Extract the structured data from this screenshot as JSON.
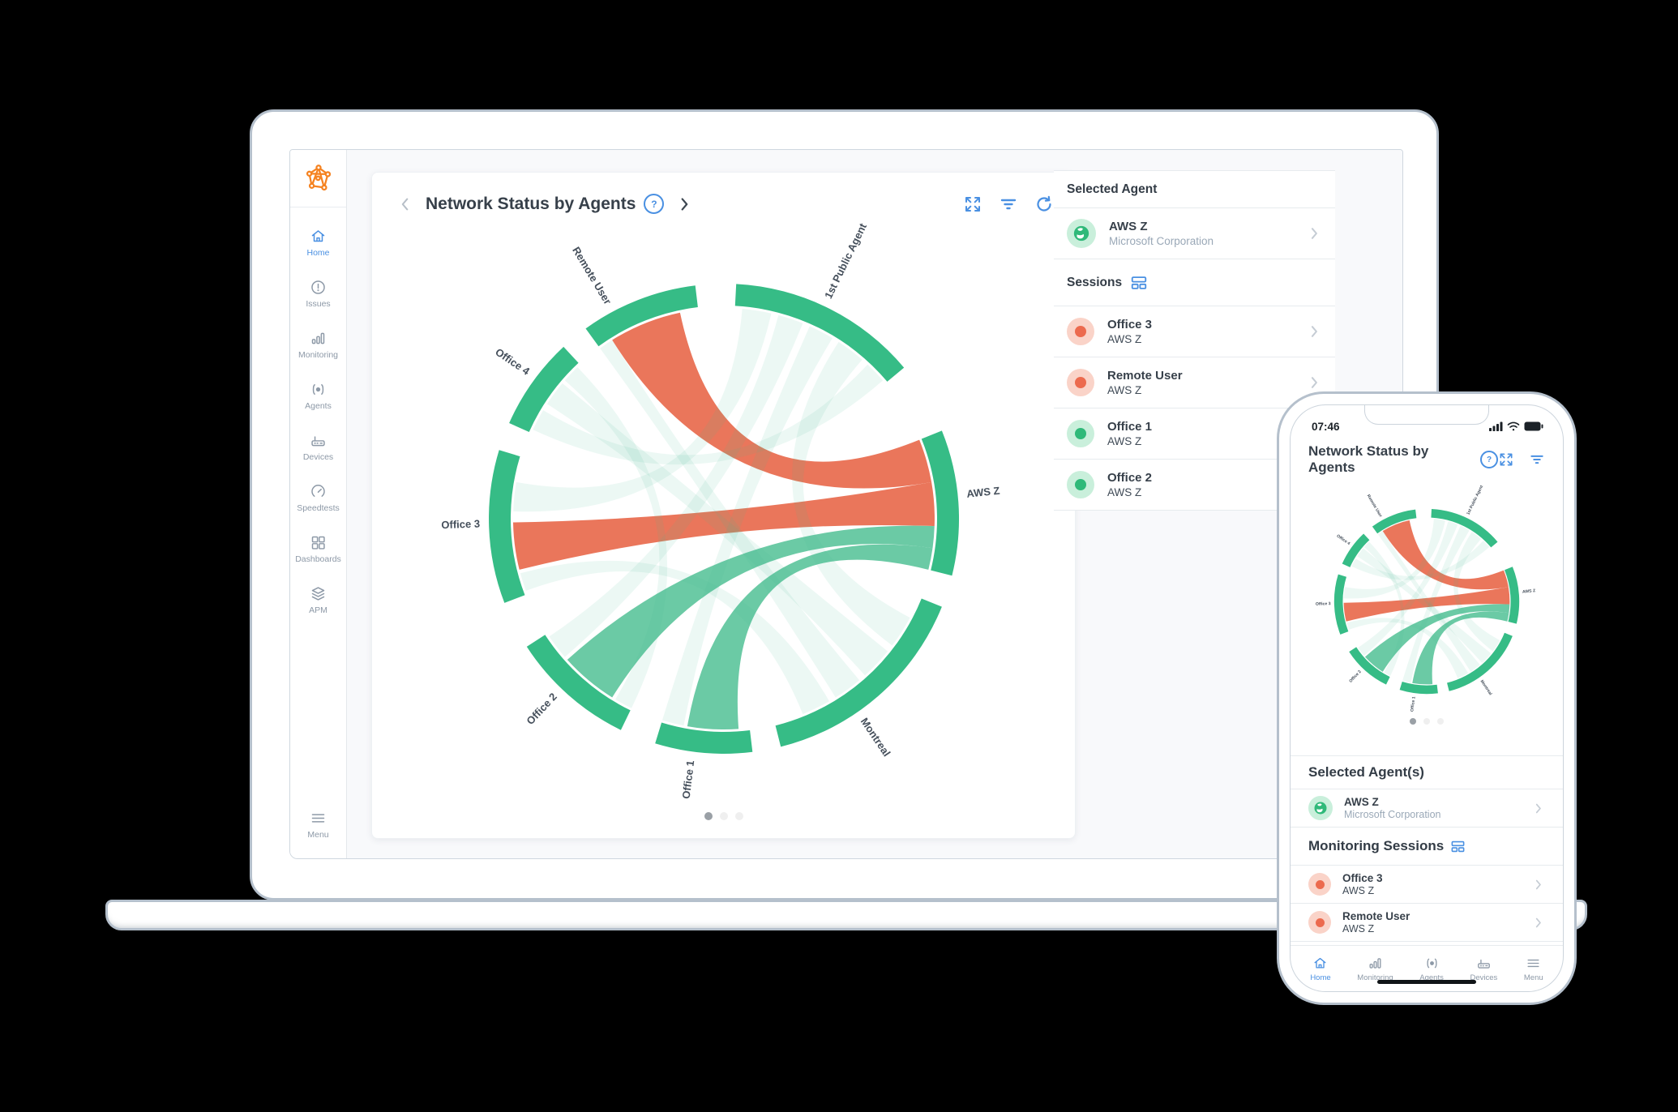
{
  "laptop": {
    "sidebar": {
      "logo": "obkio-logo",
      "items": [
        {
          "label": "Home",
          "active": true
        },
        {
          "label": "Issues",
          "active": false
        },
        {
          "label": "Monitoring",
          "active": false
        },
        {
          "label": "Agents",
          "active": false
        },
        {
          "label": "Devices",
          "active": false
        },
        {
          "label": "Speedtests",
          "active": false
        },
        {
          "label": "Dashboards",
          "active": false
        },
        {
          "label": "APM",
          "active": false
        }
      ],
      "menu_label": "Menu"
    },
    "card": {
      "title": "Network Status by Agents",
      "help": "?"
    },
    "panel": {
      "selected_agent_title": "Selected Agent",
      "agent": {
        "name": "AWS Z",
        "company": "Microsoft Corporation"
      },
      "sessions_title": "Sessions",
      "sessions": [
        {
          "name": "Office 3",
          "target": "AWS Z",
          "status": "alert"
        },
        {
          "name": "Remote User",
          "target": "AWS Z",
          "status": "alert"
        },
        {
          "name": "Office 1",
          "target": "AWS Z",
          "status": "ok"
        },
        {
          "name": "Office 2",
          "target": "AWS Z",
          "status": "ok"
        }
      ]
    }
  },
  "phone": {
    "status_time": "07:46",
    "title": "Network Status by Agents",
    "help": "?",
    "selected_title": "Selected Agent(s)",
    "agent": {
      "name": "AWS Z",
      "company": "Microsoft Corporation"
    },
    "sessions_title": "Monitoring Sessions",
    "sessions": [
      {
        "name": "Office 3",
        "target": "AWS Z",
        "status": "alert"
      },
      {
        "name": "Remote User",
        "target": "AWS Z",
        "status": "alert"
      }
    ],
    "nav": [
      {
        "label": "Home",
        "active": true
      },
      {
        "label": "Monitoring",
        "active": false
      },
      {
        "label": "Agents",
        "active": false
      },
      {
        "label": "Devices",
        "active": false
      },
      {
        "label": "Menu",
        "active": false
      }
    ]
  },
  "chart_data": {
    "type": "chord",
    "title": "Network Status by Agents",
    "nodes": [
      {
        "name": "1st Public Agent",
        "start": 3,
        "end": 50,
        "labelAngle": 26,
        "rotate": -64,
        "anchor": "start"
      },
      {
        "name": "AWS Z",
        "start": 68,
        "end": 104,
        "labelAngle": 85,
        "rotate": -6,
        "anchor": "start"
      },
      {
        "name": "Montreal",
        "start": 112,
        "end": 166,
        "labelAngle": 146,
        "rotate": 56,
        "anchor": "start"
      },
      {
        "name": "Office 1",
        "start": 173,
        "end": 197,
        "labelAngle": 187,
        "rotate": -83,
        "anchor": "end"
      },
      {
        "name": "Office 2",
        "start": 206,
        "end": 237,
        "labelAngle": 223,
        "rotate": -47,
        "anchor": "end"
      },
      {
        "name": "Office 3",
        "start": 249,
        "end": 287,
        "labelAngle": 268,
        "rotate": -2,
        "anchor": "end"
      },
      {
        "name": "Office 4",
        "start": 294,
        "end": 317,
        "labelAngle": 306,
        "rotate": 34,
        "anchor": "end"
      },
      {
        "name": "Remote User",
        "start": 324,
        "end": 353,
        "labelAngle": 331,
        "rotate": 59,
        "anchor": "end"
      }
    ],
    "ribbons": [
      {
        "source": "Remote User",
        "target": "AWS Z",
        "s": [
          328,
          348
        ],
        "t": [
          68,
          80
        ],
        "status": "alert"
      },
      {
        "source": "Office 3",
        "target": "AWS Z",
        "s": [
          256,
          269
        ],
        "t": [
          80,
          92
        ],
        "status": "alert"
      },
      {
        "source": "Office 2",
        "target": "AWS Z",
        "s": [
          212,
          228
        ],
        "t": [
          92,
          98
        ],
        "status": "ok"
      },
      {
        "source": "Office 1",
        "target": "AWS Z",
        "s": [
          176,
          190
        ],
        "t": [
          98,
          104
        ],
        "status": "ok"
      },
      {
        "source": "1st Public Agent",
        "target": "Office 3",
        "s": [
          5,
          13
        ],
        "t": [
          272,
          280
        ],
        "status": "idle"
      },
      {
        "source": "1st Public Agent",
        "target": "Office 2",
        "s": [
          15,
          22
        ],
        "t": [
          229,
          236
        ],
        "status": "idle"
      },
      {
        "source": "1st Public Agent",
        "target": "Office 1",
        "s": [
          24,
          31
        ],
        "t": [
          191,
          197
        ],
        "status": "idle"
      },
      {
        "source": "1st Public Agent",
        "target": "Montreal",
        "s": [
          33,
          41
        ],
        "t": [
          118,
          127
        ],
        "status": "idle"
      },
      {
        "source": "1st Public Agent",
        "target": "Office 4",
        "s": [
          43,
          49
        ],
        "t": [
          295,
          301
        ],
        "status": "idle"
      },
      {
        "source": "Office 4",
        "target": "Montreal",
        "s": [
          303,
          310
        ],
        "t": [
          129,
          138
        ],
        "status": "idle"
      },
      {
        "source": "Office 4",
        "target": "Office 2",
        "s": [
          311,
          316
        ],
        "t": [
          206,
          211
        ],
        "status": "idle"
      },
      {
        "source": "Remote User",
        "target": "Montreal",
        "s": [
          324,
          328
        ],
        "t": [
          140,
          148
        ],
        "status": "idle"
      },
      {
        "source": "Office 3",
        "target": "Montreal",
        "s": [
          250,
          255
        ],
        "t": [
          150,
          158
        ],
        "status": "idle"
      }
    ],
    "colors": {
      "arc": "#36bc86",
      "ok": "#46bd8f",
      "alert": "#e96f52",
      "label": "#454f5b"
    },
    "opacities": {
      "ok": 0.8,
      "alert": 0.95,
      "idle": 0.1
    },
    "geometry": {
      "outerR": 290,
      "arcThickness": 27,
      "ribbonR": 260,
      "labelR": 301
    },
    "pagination": {
      "pages": 3,
      "active": 0
    },
    "legend_position": "none",
    "grid": false
  },
  "ui_colors": {
    "accent_blue": "#4a90e2",
    "brand_orange": "#f58220",
    "ok_green": "#2fb979",
    "alert_red": "#ec6a4e"
  }
}
